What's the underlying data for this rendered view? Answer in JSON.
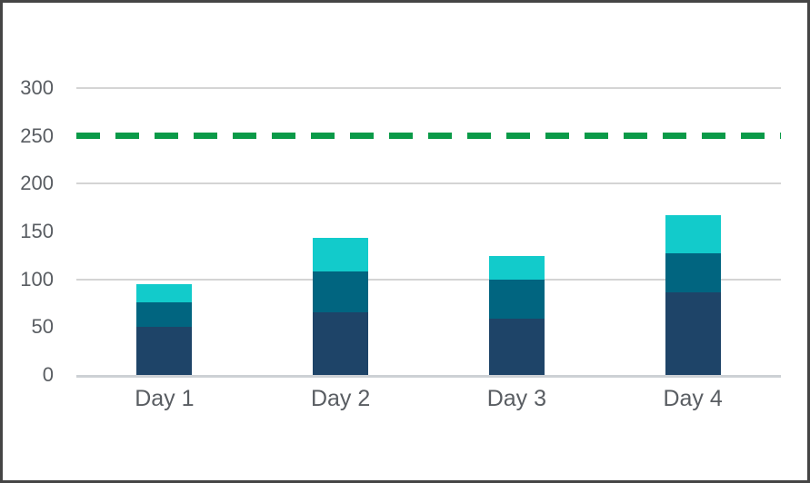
{
  "chart_data": {
    "type": "bar",
    "stacked": true,
    "title": "",
    "legend": "none",
    "grid": "horizontal",
    "categories": [
      "Day 1",
      "Day 2",
      "Day 3",
      "Day 4"
    ],
    "series": [
      {
        "name": "bottom-segment-navy",
        "color": "#1e4468",
        "values": [
          50,
          66,
          59,
          86
        ]
      },
      {
        "name": "middle-segment-teal",
        "color": "#016580",
        "values": [
          26,
          42,
          41,
          41
        ]
      },
      {
        "name": "top-segment-cyan",
        "color": "#12cbcb",
        "values": [
          19,
          35,
          24,
          40
        ]
      }
    ],
    "stack_totals": [
      95,
      143,
      124,
      167
    ],
    "reference_line": {
      "value": 250,
      "style": "dashed",
      "color": "#0a9a48"
    },
    "y_axis": {
      "min": 0,
      "max": 300,
      "tick_step": 50,
      "tick_values": [
        0,
        50,
        100,
        150,
        200,
        250,
        300
      ],
      "tick_labels": [
        "0",
        "50",
        "100",
        "150",
        "200",
        "250",
        "300"
      ],
      "gridline_values": [
        100,
        200,
        300
      ]
    },
    "x_axis": {
      "labels": [
        "Day 1",
        "Day 2",
        "Day 3",
        "Day 4"
      ]
    }
  },
  "colors": {
    "bar_navy": "#1e4468",
    "bar_teal": "#016580",
    "bar_cyan": "#12cbcb",
    "reference_green": "#0a9a48",
    "gridline": "#d4d4d4",
    "axis_line": "#cdd1d5",
    "label_text": "#595d62",
    "frame_border": "#454545",
    "background": "#ffffff"
  }
}
